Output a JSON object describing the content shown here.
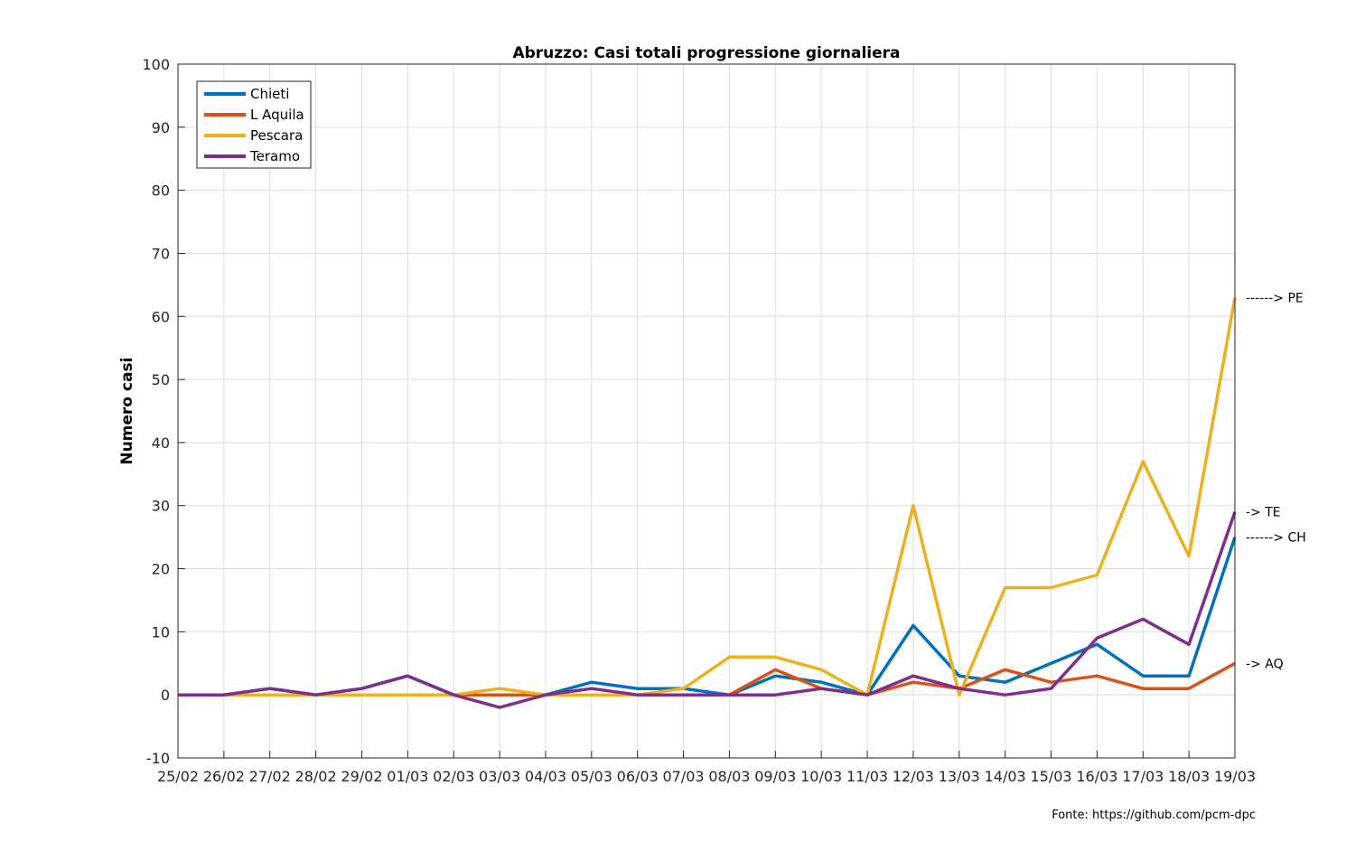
{
  "chart_data": {
    "type": "line",
    "title": "Abruzzo: Casi totali progressione giornaliera",
    "ylabel": "Numero casi",
    "xlabel": "",
    "ylim": [
      -10,
      100
    ],
    "yticks": [
      -10,
      0,
      10,
      20,
      30,
      40,
      50,
      60,
      70,
      80,
      90,
      100
    ],
    "grid": true,
    "legend_position": "top-left",
    "categories": [
      "25/02",
      "26/02",
      "27/02",
      "28/02",
      "29/02",
      "01/03",
      "02/03",
      "03/03",
      "04/03",
      "05/03",
      "06/03",
      "07/03",
      "08/03",
      "09/03",
      "10/03",
      "11/03",
      "12/03",
      "13/03",
      "14/03",
      "15/03",
      "16/03",
      "17/03",
      "18/03",
      "19/03"
    ],
    "series": [
      {
        "name": "Chieti",
        "color": "#0072BD",
        "values": [
          0,
          0,
          1,
          0,
          1,
          3,
          0,
          0,
          0,
          2,
          1,
          1,
          0,
          3,
          2,
          0,
          11,
          3,
          2,
          5,
          8,
          3,
          3,
          25
        ]
      },
      {
        "name": "L Aquila",
        "color": "#D95319",
        "values": [
          0,
          0,
          0,
          0,
          0,
          0,
          0,
          0,
          0,
          0,
          0,
          0,
          0,
          4,
          1,
          0,
          2,
          1,
          4,
          2,
          3,
          1,
          1,
          5
        ]
      },
      {
        "name": "Pescara",
        "color": "#EDB120",
        "values": [
          0,
          0,
          0,
          0,
          0,
          0,
          0,
          1,
          0,
          0,
          0,
          1,
          6,
          6,
          4,
          0,
          30,
          0,
          17,
          17,
          19,
          37,
          22,
          63
        ]
      },
      {
        "name": "Teramo",
        "color": "#7E2F8E",
        "values": [
          0,
          0,
          1,
          0,
          1,
          3,
          0,
          -2,
          0,
          1,
          0,
          0,
          0,
          0,
          1,
          0,
          3,
          1,
          0,
          1,
          9,
          12,
          8,
          29
        ]
      }
    ],
    "annotations": [
      {
        "text": "------> PE",
        "y": 63
      },
      {
        "text": "-> TE",
        "y": 29
      },
      {
        "text": "------> CH",
        "y": 25
      },
      {
        "text": "-> AQ",
        "y": 5
      }
    ],
    "source": "Fonte: https://github.com/pcm-dpc"
  }
}
